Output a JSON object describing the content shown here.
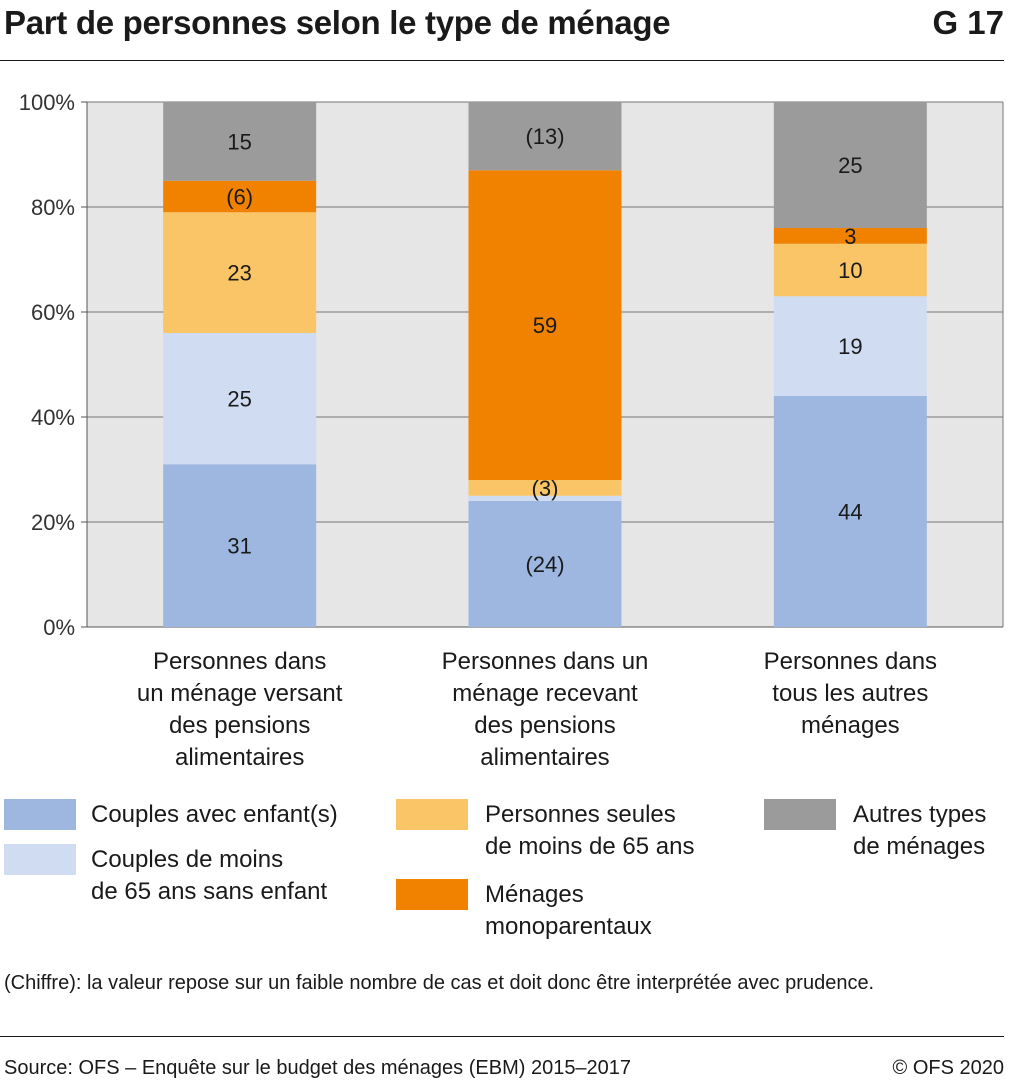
{
  "header": {
    "title": "Part de personnes selon le type de ménage",
    "figure_id": "G 17"
  },
  "chart_data": {
    "type": "bar",
    "stacked": true,
    "title": "Part de personnes selon le type de ménage",
    "categories": [
      "Personnes dans\nun ménage versant\ndes pensions\nalimentaires",
      "Personnes dans un\nménage recevant\ndes pensions\nalimentaires",
      "Personnes dans\ntous les autres\nménages"
    ],
    "ylim": [
      0,
      100
    ],
    "yticks": [
      "0%",
      "20%",
      "40%",
      "60%",
      "80%",
      "100%"
    ],
    "grid": true,
    "legend_position": "bottom",
    "series": [
      {
        "name": "Couples avec enfant(s)",
        "color": "#9db7e0",
        "values": [
          31,
          24,
          44
        ],
        "labels": [
          "31",
          "(24)",
          "44"
        ]
      },
      {
        "name": "Couples de moins de 65 ans sans enfant",
        "color": "#d0dcf1",
        "values": [
          25,
          1,
          19
        ],
        "labels": [
          "25",
          "",
          "19"
        ]
      },
      {
        "name": "Personnes seules de moins de 65 ans",
        "color": "#fac566",
        "values": [
          23,
          3,
          10
        ],
        "labels": [
          "23",
          "(3)",
          "10"
        ]
      },
      {
        "name": "Ménages monoparentaux",
        "color": "#f08200",
        "values": [
          6,
          59,
          3
        ],
        "labels": [
          "(6)",
          "59",
          "3"
        ]
      },
      {
        "name": "Autres types de ménages",
        "color": "#9b9b9b",
        "values": [
          15,
          13,
          25
        ],
        "labels": [
          "15",
          "(13)",
          "25"
        ]
      }
    ]
  },
  "legend": {
    "couples_enfants": "Couples avec enfant(s)",
    "couples_sans_enfant": "Couples de moins\nde 65 ans sans enfant",
    "personnes_seules": "Personnes seules\nde moins de 65 ans",
    "monoparentaux": "Ménages\nmonoparentaux",
    "autres": "Autres types\nde ménages"
  },
  "footer": {
    "note": "(Chiffre): la valeur repose sur un faible nombre de cas et doit donc être interprétée avec prudence.",
    "source": "Source: OFS – Enquête sur le budget des ménages (EBM) 2015–2017",
    "copyright": "© OFS 2020"
  }
}
